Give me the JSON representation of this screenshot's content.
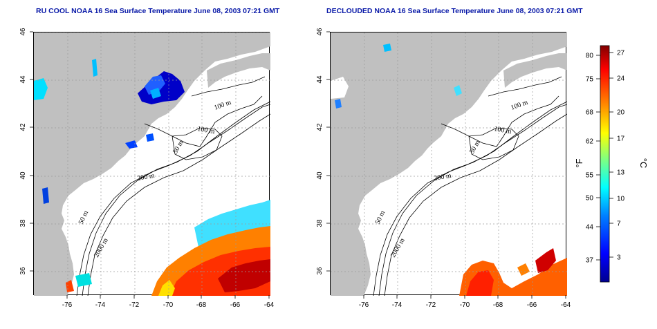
{
  "panels": [
    {
      "title": "RU COOL NOAA 16 Sea Surface Temperature June 08, 2003 07:21 GMT"
    },
    {
      "title": "DECLOUDED NOAA 16 Sea Surface Temperature June 08, 2003 07:21 GMT"
    }
  ],
  "axes": {
    "lon_ticks": [
      "-76",
      "-74",
      "-72",
      "-70",
      "-68",
      "-66",
      "-64"
    ],
    "lat_ticks": [
      "46",
      "44",
      "42",
      "40",
      "38",
      "36"
    ]
  },
  "contour_labels": [
    "100 m",
    "100 m",
    "50 m",
    "200 m",
    "50 m",
    "2000 m"
  ],
  "colorbar": {
    "fahrenheit_ticks": [
      "80",
      "75",
      "68",
      "62",
      "55",
      "50",
      "44",
      "37"
    ],
    "celsius_ticks": [
      "27",
      "24",
      "20",
      "17",
      "13",
      "10",
      "7",
      "3"
    ],
    "left_unit": "°F",
    "right_unit": "°C",
    "colors": [
      "#00008f",
      "#0000ff",
      "#0080ff",
      "#00ffff",
      "#80ff80",
      "#ffff00",
      "#ff8000",
      "#ff0000",
      "#800000"
    ]
  },
  "colors": {
    "land": "#c0c0c0",
    "ocean": "#ffffff",
    "title": "#0a1aa8"
  }
}
